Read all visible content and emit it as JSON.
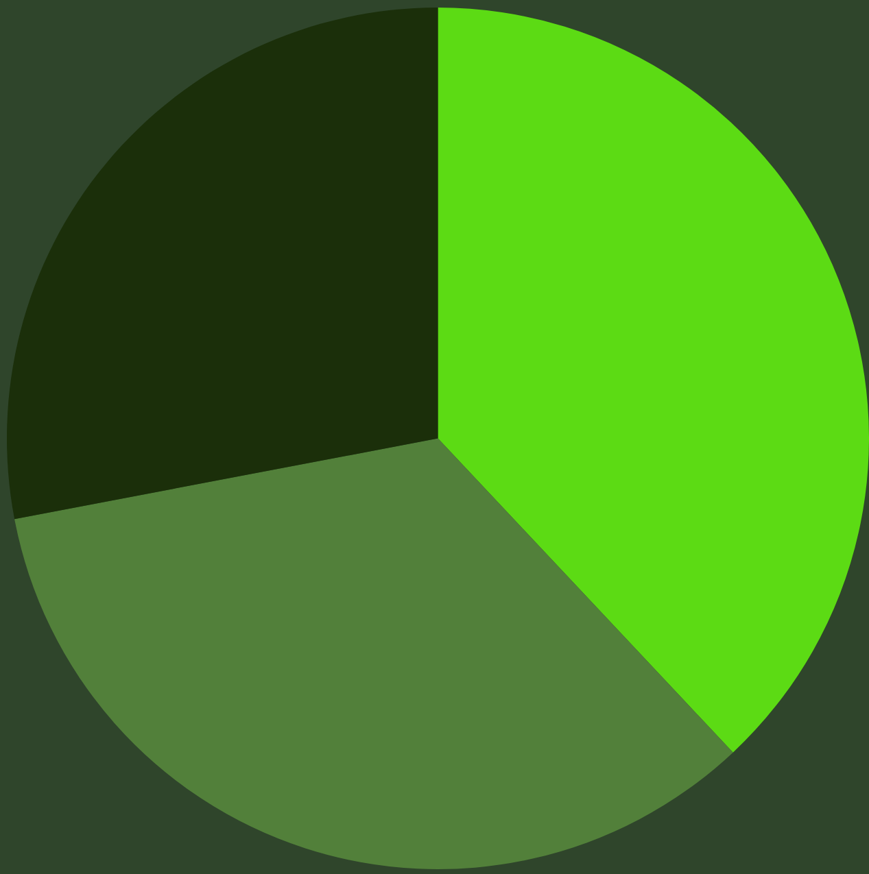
{
  "chart_data": {
    "type": "pie",
    "values": [
      38,
      34,
      28
    ],
    "colors": [
      "#5cdb14",
      "#52803a",
      "#1b2f0a"
    ]
  }
}
